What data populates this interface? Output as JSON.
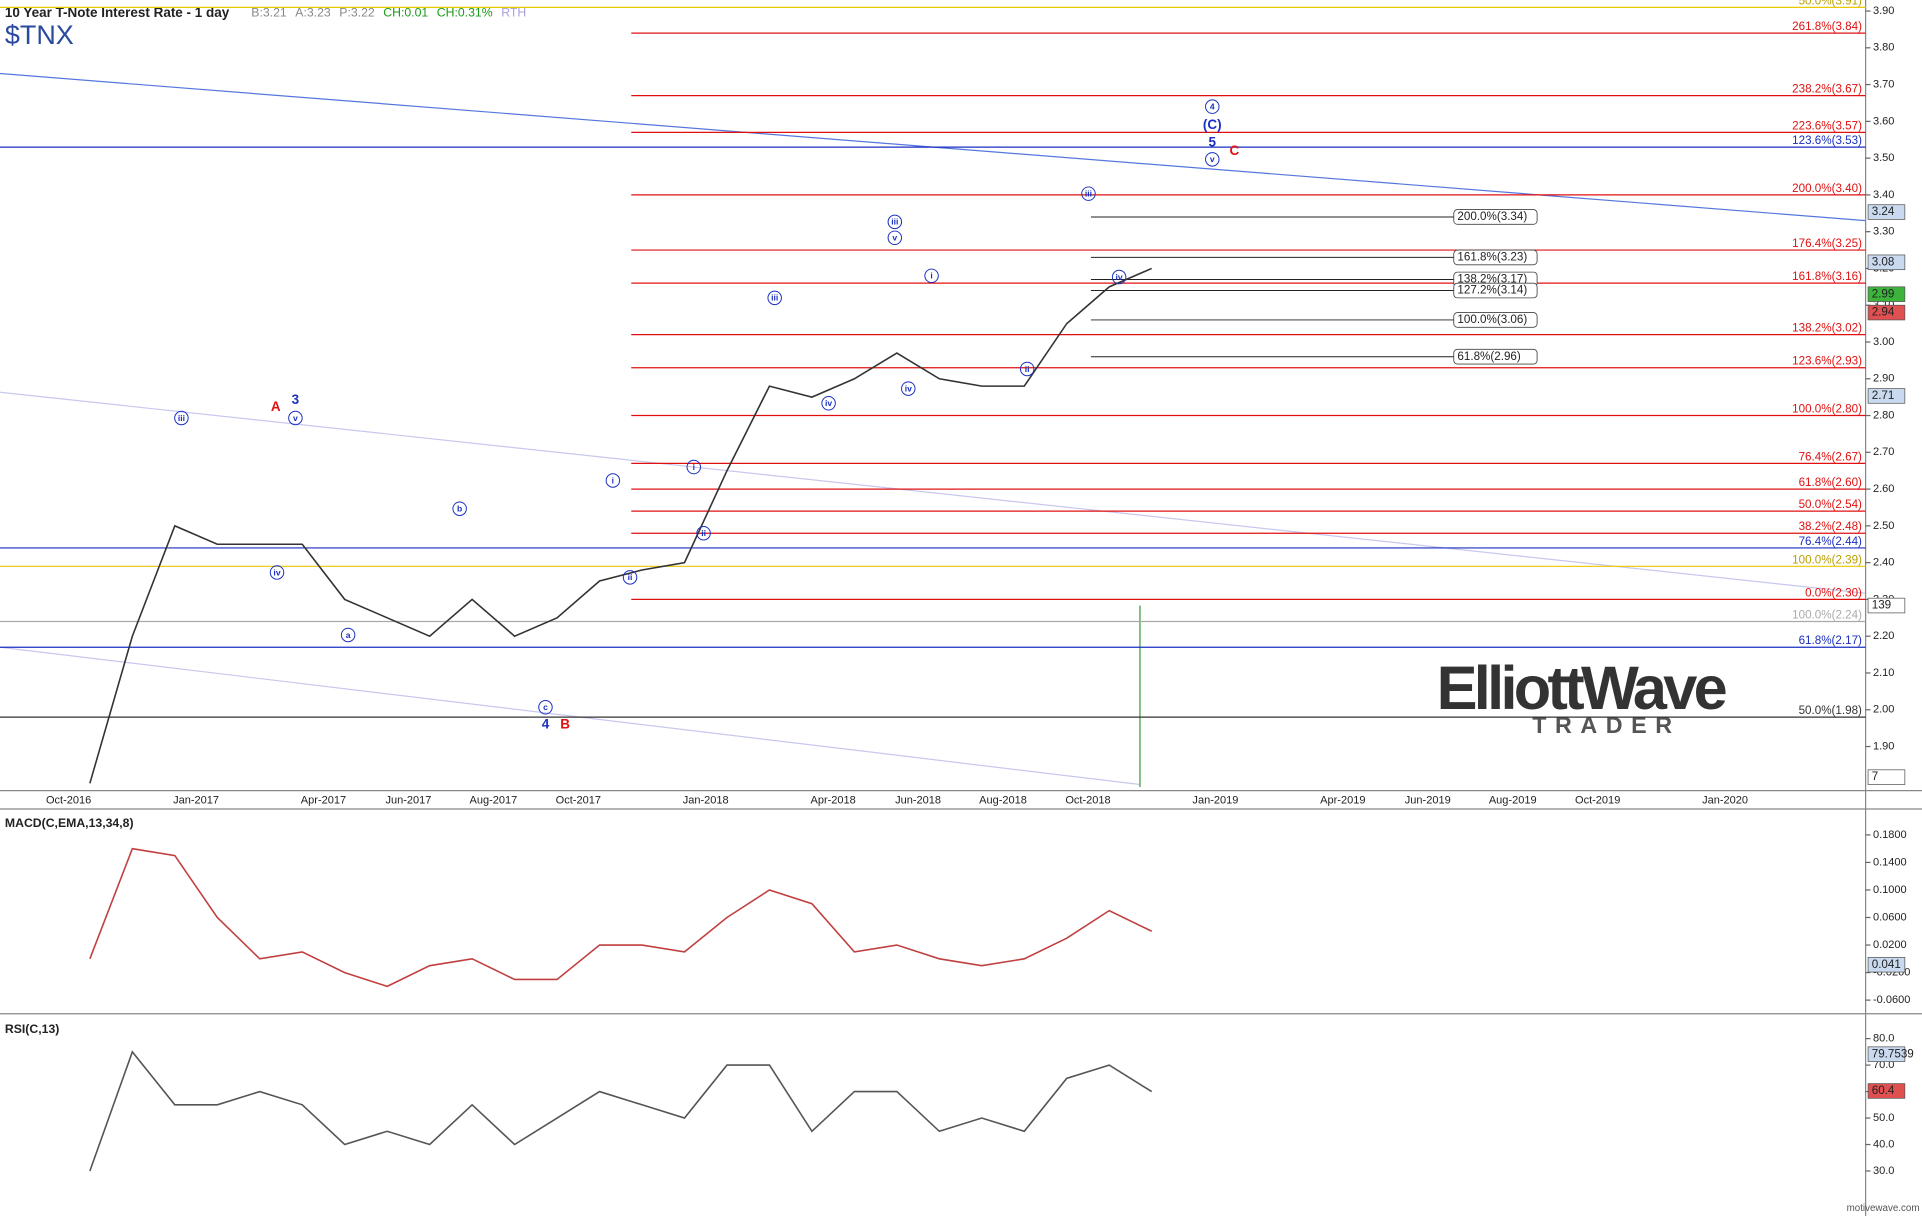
{
  "header": {
    "title": "10 Year T-Note Interest Rate - 1 day",
    "quotes": [
      {
        "text": "B:3.21",
        "color": "#888"
      },
      {
        "text": "A:3.23",
        "color": "#888"
      },
      {
        "text": "P:3.22",
        "color": "#888"
      },
      {
        "text": "CH:0.01",
        "color": "#1a9a1a"
      },
      {
        "text": "CH:0.31%",
        "color": "#1a9a1a"
      },
      {
        "text": "RTH",
        "color": "#a9a0d8"
      }
    ],
    "symbol": "$TNX"
  },
  "chart_data": [
    {
      "type": "line",
      "color": "#333",
      "categories": [
        "Oct-2016",
        null,
        null,
        "Jan-2017",
        null,
        null,
        "Apr-2017",
        null,
        "Jun-2017",
        null,
        "Aug-2017",
        null,
        "Oct-2017",
        null,
        null,
        "Jan-2018",
        null,
        null,
        "Apr-2018",
        null,
        "Jun-2018",
        null,
        "Aug-2018",
        null,
        "Oct-2018",
        null,
        null,
        "Jan-2019",
        null,
        null,
        "Apr-2019",
        null,
        "Jun-2019",
        null,
        "Aug-2019",
        null,
        "Oct-2019",
        null,
        null,
        "Jan-2020"
      ],
      "values": [
        1.8,
        2.2,
        2.5,
        2.45,
        2.45,
        2.45,
        2.3,
        2.25,
        2.2,
        2.3,
        2.2,
        2.25,
        2.35,
        2.38,
        2.4,
        2.65,
        2.88,
        2.85,
        2.9,
        2.97,
        2.9,
        2.88,
        2.88,
        3.05,
        3.15,
        3.2,
        null,
        null,
        null,
        null,
        null,
        null,
        null,
        null,
        null,
        null,
        null,
        null,
        null,
        null
      ],
      "ylim": [
        1.78,
        3.93
      ],
      "yticks": [
        {
          "value": 1.9,
          "label": "1.90"
        },
        {
          "value": 2.0,
          "label": "2.00"
        },
        {
          "value": 2.1,
          "label": "2.10"
        },
        {
          "value": 2.2,
          "label": "2.20"
        },
        {
          "value": 2.3,
          "label": "2.30"
        },
        {
          "value": 2.4,
          "label": "2.40"
        },
        {
          "value": 2.5,
          "label": "2.50"
        },
        {
          "value": 2.6,
          "label": "2.60"
        },
        {
          "value": 2.7,
          "label": "2.70"
        },
        {
          "value": 2.8,
          "label": "2.80"
        },
        {
          "value": 2.9,
          "label": "2.90"
        },
        {
          "value": 3.0,
          "label": "3.00"
        },
        {
          "value": 3.1,
          "label": "3.10"
        },
        {
          "value": 3.2,
          "label": "3.20"
        },
        {
          "value": 3.3,
          "label": "3.30"
        },
        {
          "value": 3.4,
          "label": "3.40"
        },
        {
          "value": 3.5,
          "label": "3.50"
        },
        {
          "value": 3.6,
          "label": "3.60"
        },
        {
          "value": 3.7,
          "label": "3.70"
        },
        {
          "value": 3.8,
          "label": "3.80"
        },
        {
          "value": 3.9,
          "label": "3.90"
        }
      ],
      "levels": [
        {
          "label": "50.0%(3.91)",
          "value": 3.91,
          "color": "#e8c800"
        },
        {
          "label": "261.8%(3.84)",
          "value": 3.84,
          "color": "#e01010"
        },
        {
          "label": "238.2%(3.67)",
          "value": 3.67,
          "color": "#e01010"
        },
        {
          "label": "223.6%(3.57)",
          "value": 3.57,
          "color": "#e01010"
        },
        {
          "label": "123.6%(3.53)",
          "value": 3.53,
          "color": "#1a2fc0"
        },
        {
          "label": "200.0%(3.40)",
          "value": 3.4,
          "color": "#e01010"
        },
        {
          "label": "176.4%(3.25)",
          "value": 3.25,
          "color": "#e01010"
        },
        {
          "label": "161.8%(3.16)",
          "value": 3.16,
          "color": "#e01010"
        },
        {
          "label": "138.2%(3.02)",
          "value": 3.02,
          "color": "#e01010"
        },
        {
          "label": "123.6%(2.93)",
          "value": 2.93,
          "color": "#e01010"
        },
        {
          "label": "100.0%(2.80)",
          "value": 2.8,
          "color": "#e01010"
        },
        {
          "label": "76.4%(2.67)",
          "value": 2.67,
          "color": "#e01010"
        },
        {
          "label": "61.8%(2.60)",
          "value": 2.6,
          "color": "#e01010"
        },
        {
          "label": "50.0%(2.54)",
          "value": 2.54,
          "color": "#e01010"
        },
        {
          "label": "38.2%(2.48)",
          "value": 2.48,
          "color": "#e01010"
        },
        {
          "label": "76.4%(2.44)",
          "value": 2.44,
          "color": "#1a2fc0"
        },
        {
          "label": "100.0%(2.39)",
          "value": 2.39,
          "color": "#e8c800"
        },
        {
          "label": "0.0%(2.30)",
          "value": 2.3,
          "color": "#e01010"
        },
        {
          "label": "100.0%(2.24)",
          "value": 2.24,
          "color": "#aaa"
        },
        {
          "label": "61.8%(2.17)",
          "value": 2.17,
          "color": "#1a2fc0"
        },
        {
          "label": "50.0%(1.98)",
          "value": 1.98,
          "color": "#333"
        }
      ],
      "targets": [
        {
          "label": "200.0%(3.34)",
          "value": 3.34
        },
        {
          "label": "161.8%(3.23)",
          "value": 3.23
        },
        {
          "label": "138.2%(3.17)",
          "value": 3.17
        },
        {
          "label": "127.2%(3.14)",
          "value": 3.14
        },
        {
          "label": "100.0%(3.06)",
          "value": 3.06
        },
        {
          "label": "61.8%(2.96)",
          "value": 2.96
        }
      ],
      "badges": [
        {
          "label": "3.24",
          "color": "#c9daf0"
        },
        {
          "label": "3.08",
          "color": "#c9daf0"
        },
        {
          "label": "2.99",
          "color": "#3cb43c"
        },
        {
          "label": "2.94",
          "color": "#e05050"
        },
        {
          "label": "2.71",
          "color": "#c9daf0"
        },
        {
          "label": "139",
          "color": "#fff"
        },
        {
          "label": "7",
          "color": "#fff"
        }
      ],
      "wave_labels": [
        {
          "text": "iii",
          "color": "#1a2fc0"
        },
        {
          "text": "iv",
          "color": "#1a2fc0"
        },
        {
          "text": "v",
          "color": "#1a2fc0"
        },
        {
          "text": "A",
          "color": "#e01010"
        },
        {
          "text": "3",
          "color": "#1a2fc0"
        },
        {
          "text": "a",
          "color": "#1a2fc0"
        },
        {
          "text": "b",
          "color": "#1a2fc0"
        },
        {
          "text": "c",
          "color": "#1a2fc0"
        },
        {
          "text": "4",
          "color": "#1a2fc0"
        },
        {
          "text": "B",
          "color": "#e01010"
        },
        {
          "text": "i",
          "color": "#1a2fc0"
        },
        {
          "text": "ii",
          "color": "#1a2fc0"
        },
        {
          "text": "i",
          "color": "#1a2fc0"
        },
        {
          "text": "ii",
          "color": "#1a2fc0"
        },
        {
          "text": "iii",
          "color": "#1a2fc0"
        },
        {
          "text": "iv",
          "color": "#1a2fc0"
        },
        {
          "text": "iii",
          "color": "#1a2fc0"
        },
        {
          "text": "v",
          "color": "#1a2fc0"
        },
        {
          "text": "iv",
          "color": "#1a2fc0"
        },
        {
          "text": "i",
          "color": "#1a2fc0"
        },
        {
          "text": "ii",
          "color": "#1a2fc0"
        },
        {
          "text": "iii",
          "color": "#1a2fc0"
        },
        {
          "text": "iv",
          "color": "#1a2fc0"
        },
        {
          "text": "4",
          "color": "#1a2fc0"
        },
        {
          "text": "(C)",
          "color": "#1a2fc0"
        },
        {
          "text": "5",
          "color": "#1a2fc0"
        },
        {
          "text": "v",
          "color": "#1a2fc0"
        },
        {
          "text": "C",
          "color": "#e01010"
        }
      ]
    },
    {
      "type": "line",
      "title": "MACD(C,EMA,13,34,8)",
      "color": "#c04040",
      "values": [
        0.0,
        0.16,
        0.15,
        0.06,
        0.0,
        0.01,
        -0.02,
        -0.04,
        -0.01,
        0.0,
        -0.03,
        -0.03,
        0.02,
        0.02,
        0.01,
        0.06,
        0.1,
        0.08,
        0.01,
        0.02,
        0.0,
        -0.01,
        0.0,
        0.03,
        0.07,
        0.04
      ],
      "ylim": [
        -0.078,
        0.214
      ],
      "yticks": [
        {
          "value": 0.18,
          "label": "0.1800"
        },
        {
          "value": 0.14,
          "label": "0.1400"
        },
        {
          "value": 0.1,
          "label": "0.1000"
        },
        {
          "value": 0.06,
          "label": "0.0600"
        },
        {
          "value": 0.02,
          "label": "0.0200"
        },
        {
          "value": -0.02,
          "label": "-0.0200"
        },
        {
          "value": -0.06,
          "label": "-0.0600"
        }
      ],
      "badges": [
        {
          "label": "0.041",
          "color": "#c9daf0"
        }
      ]
    },
    {
      "type": "line",
      "title": "RSI(C,13)",
      "color": "#555",
      "values": [
        30,
        75,
        55,
        55,
        60,
        55,
        40,
        45,
        40,
        55,
        40,
        50,
        60,
        55,
        50,
        70,
        70,
        45,
        60,
        60,
        45,
        50,
        45,
        65,
        70,
        60
      ],
      "ylim": [
        13,
        88
      ],
      "yticks": [
        {
          "value": 80,
          "label": "80.0"
        },
        {
          "value": 70,
          "label": "70.0"
        },
        {
          "value": 60,
          "label": "60.0"
        },
        {
          "value": 50,
          "label": "50.0"
        },
        {
          "value": 40,
          "label": "40.0"
        },
        {
          "value": 30,
          "label": "30.0"
        }
      ],
      "badges": [
        {
          "label": "79.7539",
          "color": "#c9daf0"
        },
        {
          "label": "60.4",
          "color": "#e05050"
        }
      ]
    }
  ],
  "logo": {
    "name": "ElliottWave",
    "tagline": "TRADER"
  },
  "footer": "motivewave.com"
}
